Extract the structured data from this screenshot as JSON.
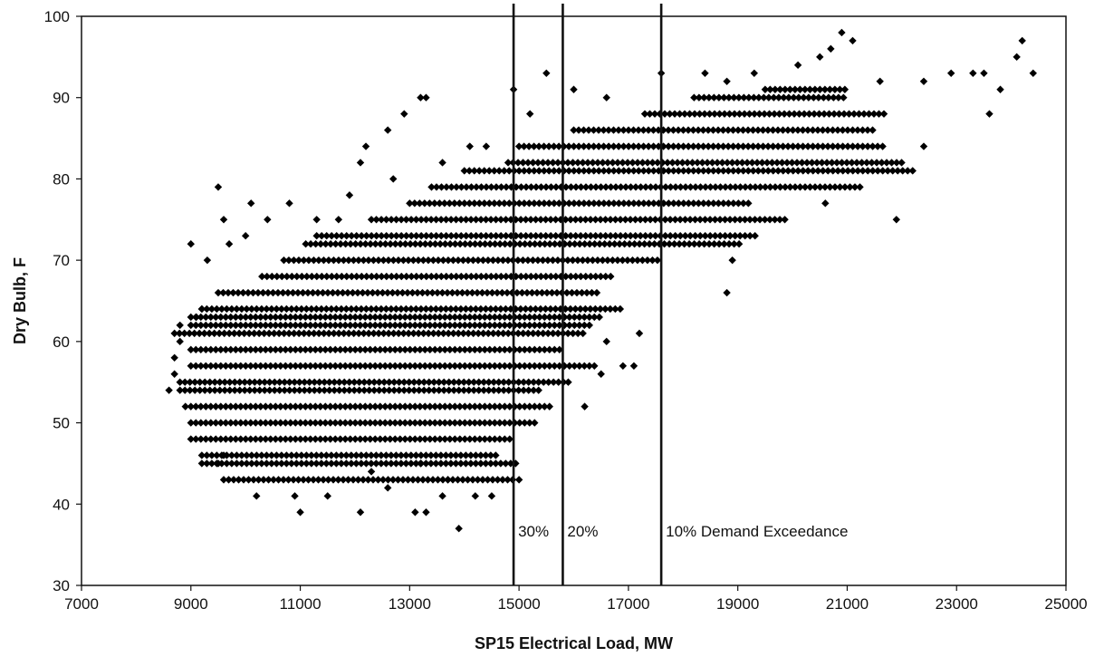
{
  "chart_data": {
    "type": "scatter",
    "title": "",
    "xlabel": "SP15 Electrical Load, MW",
    "ylabel": "Dry Bulb, F",
    "xlim": [
      7000,
      25000
    ],
    "ylim": [
      30,
      100
    ],
    "x_ticks": [
      7000,
      9000,
      11000,
      13000,
      15000,
      17000,
      19000,
      21000,
      23000,
      25000
    ],
    "y_ticks": [
      30,
      40,
      50,
      60,
      70,
      80,
      90,
      100
    ],
    "grid": false,
    "legend": "none",
    "marker": "diamond",
    "marker_color": "#000000",
    "vertical_lines": [
      {
        "x": 14900,
        "label": "30%"
      },
      {
        "x": 15800,
        "label": "20%"
      },
      {
        "x": 17600,
        "label": "10% Demand Exceedance"
      }
    ],
    "bands": [
      {
        "y": 43,
        "x": [
          9600,
          14900
        ]
      },
      {
        "y": 45,
        "x": [
          9200,
          15000
        ]
      },
      {
        "y": 46,
        "x": [
          9200,
          14600
        ]
      },
      {
        "y": 48,
        "x": [
          9000,
          14900
        ]
      },
      {
        "y": 50,
        "x": [
          9000,
          15300
        ]
      },
      {
        "y": 52,
        "x": [
          9000,
          15600
        ]
      },
      {
        "y": 54,
        "x": [
          8800,
          15400
        ]
      },
      {
        "y": 55,
        "x": [
          8800,
          15900
        ]
      },
      {
        "y": 57,
        "x": [
          9000,
          16400
        ]
      },
      {
        "y": 59,
        "x": [
          9000,
          15800
        ]
      },
      {
        "y": 61,
        "x": [
          8700,
          16200
        ]
      },
      {
        "y": 62,
        "x": [
          9000,
          16300
        ]
      },
      {
        "y": 63,
        "x": [
          9000,
          16500
        ]
      },
      {
        "y": 64,
        "x": [
          9200,
          16900
        ]
      },
      {
        "y": 66,
        "x": [
          9500,
          16500
        ]
      },
      {
        "y": 68,
        "x": [
          10300,
          16700
        ]
      },
      {
        "y": 70,
        "x": [
          10700,
          17600
        ]
      },
      {
        "y": 72,
        "x": [
          11100,
          19100
        ]
      },
      {
        "y": 73,
        "x": [
          11300,
          19400
        ]
      },
      {
        "y": 75,
        "x": [
          12300,
          19900
        ]
      },
      {
        "y": 77,
        "x": [
          13000,
          19200
        ]
      },
      {
        "y": 79,
        "x": [
          13400,
          21300
        ]
      },
      {
        "y": 81,
        "x": [
          14000,
          22200
        ]
      },
      {
        "y": 82,
        "x": [
          14800,
          22000
        ]
      },
      {
        "y": 84,
        "x": [
          15000,
          21700
        ]
      },
      {
        "y": 86,
        "x": [
          16000,
          21500
        ]
      },
      {
        "y": 88,
        "x": [
          17300,
          21700
        ]
      },
      {
        "y": 90,
        "x": [
          18200,
          21000
        ]
      },
      {
        "y": 91,
        "x": [
          19500,
          21000
        ]
      }
    ],
    "points": [
      [
        9000,
        72
      ],
      [
        9500,
        79
      ],
      [
        9600,
        75
      ],
      [
        9300,
        70
      ],
      [
        9700,
        72
      ],
      [
        10000,
        73
      ],
      [
        10400,
        75
      ],
      [
        10100,
        77
      ],
      [
        10800,
        77
      ],
      [
        11300,
        75
      ],
      [
        11700,
        75
      ],
      [
        11900,
        78
      ],
      [
        12200,
        84
      ],
      [
        12600,
        86
      ],
      [
        12900,
        88
      ],
      [
        12100,
        82
      ],
      [
        12700,
        80
      ],
      [
        13200,
        90
      ],
      [
        13300,
        90
      ],
      [
        13600,
        82
      ],
      [
        14100,
        84
      ],
      [
        14400,
        84
      ],
      [
        14900,
        91
      ],
      [
        15200,
        88
      ],
      [
        15500,
        93
      ],
      [
        16000,
        91
      ],
      [
        16600,
        90
      ],
      [
        17600,
        93
      ],
      [
        18400,
        93
      ],
      [
        18800,
        92
      ],
      [
        19300,
        93
      ],
      [
        20100,
        94
      ],
      [
        20500,
        95
      ],
      [
        20700,
        96
      ],
      [
        20900,
        98
      ],
      [
        21100,
        97
      ],
      [
        21600,
        92
      ],
      [
        22400,
        92
      ],
      [
        22900,
        93
      ],
      [
        23300,
        93
      ],
      [
        23500,
        93
      ],
      [
        23800,
        91
      ],
      [
        24100,
        95
      ],
      [
        24200,
        97
      ],
      [
        24400,
        93
      ],
      [
        23600,
        88
      ],
      [
        22400,
        84
      ],
      [
        21900,
        75
      ],
      [
        20600,
        77
      ],
      [
        18800,
        66
      ],
      [
        18900,
        70
      ],
      [
        16200,
        52
      ],
      [
        15900,
        55
      ],
      [
        16500,
        56
      ],
      [
        16900,
        57
      ],
      [
        17100,
        57
      ],
      [
        16600,
        60
      ],
      [
        17200,
        61
      ],
      [
        15000,
        43
      ],
      [
        14500,
        41
      ],
      [
        14200,
        41
      ],
      [
        13600,
        41
      ],
      [
        13700,
        43
      ],
      [
        13300,
        39
      ],
      [
        13100,
        39
      ],
      [
        12100,
        39
      ],
      [
        11000,
        39
      ],
      [
        10200,
        41
      ],
      [
        11500,
        41
      ],
      [
        12600,
        42
      ],
      [
        13900,
        37
      ],
      [
        13200,
        45
      ],
      [
        12300,
        44
      ],
      [
        10900,
        41
      ],
      [
        8700,
        58
      ],
      [
        8600,
        54
      ],
      [
        8700,
        56
      ],
      [
        8800,
        60
      ],
      [
        8900,
        52
      ],
      [
        9100,
        63
      ],
      [
        9200,
        64
      ],
      [
        8800,
        62
      ],
      [
        9500,
        45
      ],
      [
        9600,
        46
      ]
    ]
  }
}
